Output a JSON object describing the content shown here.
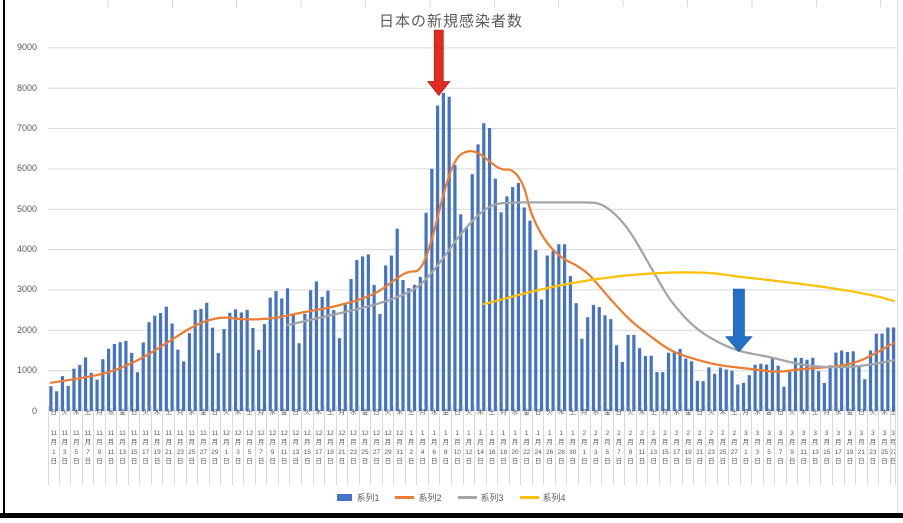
{
  "title": "日本の新規感染者数",
  "colors": {
    "bar": "#4472C4",
    "series2": "#ED7D31",
    "series3": "#A5A5A5",
    "series4": "#FFC000",
    "red_arrow": "#E02B20",
    "red_arrow_edge": "#B02418",
    "blue_arrow": "#2470C8",
    "blue_arrow_edge": "#1F5FA8",
    "gridline": "#D9D9D9",
    "axis_text": "#595959"
  },
  "legend": {
    "items": [
      {
        "label": "系列1",
        "type": "bar",
        "color": "#4472C4"
      },
      {
        "label": "系列2",
        "type": "line",
        "color": "#ED7D31"
      },
      {
        "label": "系列3",
        "type": "line",
        "color": "#A5A5A5"
      },
      {
        "label": "系列4",
        "type": "line",
        "color": "#FFC000"
      }
    ]
  },
  "chart_data": {
    "type": "bar",
    "title": "日本の新規感染者数",
    "xlabel": "",
    "ylabel": "",
    "ylim": [
      0,
      9000
    ],
    "grid": true,
    "legend_position": "bottom",
    "y_axis": {
      "min": 0,
      "max": 9000,
      "step": 1000,
      "tick_labels": [
        "0",
        "1000",
        "2000",
        "3000",
        "4000",
        "5000",
        "6000",
        "7000",
        "8000",
        "9000"
      ]
    },
    "x_axis": {
      "description": "daily categories from 11月1日(日) to 3月27日(土), labeled every 2 days",
      "weekday_chars": [
        "日",
        "月",
        "火",
        "水",
        "木",
        "金",
        "土"
      ],
      "start_weekday_index": 0,
      "months": [
        {
          "label": "11",
          "days": 30
        },
        {
          "label": "12",
          "days": 31
        },
        {
          "label": "1",
          "days": 31
        },
        {
          "label": "2",
          "days": 28
        },
        {
          "label": "3",
          "days": 27
        }
      ],
      "label_every_days": 2,
      "month_suffix": "月",
      "day_suffix": "日"
    },
    "series": [
      {
        "name": "系列1",
        "type": "bar",
        "color": "#4472C4",
        "values": [
          614,
          488,
          865,
          620,
          1049,
          1141,
          1331,
          947,
          780,
          1284,
          1543,
          1660,
          1704,
          1738,
          1441,
          962,
          1699,
          2201,
          2363,
          2427,
          2586,
          2168,
          1520,
          1229,
          1930,
          2504,
          2531,
          2684,
          2066,
          1438,
          2030,
          2434,
          2518,
          2442,
          2508,
          2058,
          1516,
          2152,
          2810,
          2972,
          2790,
          3041,
          2388,
          1680,
          2410,
          2993,
          3211,
          2829,
          2982,
          2501,
          1806,
          2686,
          3271,
          3742,
          3832,
          3881,
          3127,
          2403,
          3608,
          3852,
          4520,
          3246,
          3044,
          3127,
          3325,
          4915,
          6004,
          7571,
          7882,
          7790,
          6096,
          4875,
          4538,
          5870,
          6609,
          7133,
          7014,
          5759,
          4925,
          5320,
          5549,
          5653,
          5045,
          4717,
          3989,
          2764,
          3853,
          3971,
          4133,
          4132,
          3344,
          2673,
          1792,
          2324,
          2631,
          2576,
          2372,
          2277,
          1630,
          1216,
          1887,
          1885,
          1558,
          1362,
          1371,
          965,
          965,
          1443,
          1448,
          1539,
          1301,
          1234,
          750,
          739,
          1083,
          922,
          1076,
          1029,
          999,
          657,
          697,
          888,
          1148,
          1171,
          1151,
          1330,
          1122,
          599,
          973,
          1320,
          1316,
          1271,
          1320,
          989,
          695,
          1133,
          1448,
          1499,
          1463,
          1480,
          1121,
          787,
          1500,
          1918,
          1917,
          2070,
          2072
        ]
      },
      {
        "name": "系列2",
        "type": "line",
        "color": "#ED7D31",
        "points": [
          [
            0,
            700
          ],
          [
            4,
            790
          ],
          [
            8,
            880
          ],
          [
            12,
            1050
          ],
          [
            16,
            1320
          ],
          [
            20,
            1680
          ],
          [
            24,
            2050
          ],
          [
            27,
            2250
          ],
          [
            30,
            2330
          ],
          [
            33,
            2270
          ],
          [
            36,
            2270
          ],
          [
            39,
            2300
          ],
          [
            42,
            2400
          ],
          [
            45,
            2480
          ],
          [
            48,
            2550
          ],
          [
            51,
            2660
          ],
          [
            54,
            2780
          ],
          [
            57,
            2970
          ],
          [
            60,
            3300
          ],
          [
            62,
            3470
          ],
          [
            64,
            3450
          ],
          [
            66,
            4200
          ],
          [
            68,
            5400
          ],
          [
            70,
            6250
          ],
          [
            72,
            6460
          ],
          [
            74,
            6420
          ],
          [
            76,
            6180
          ],
          [
            78,
            5970
          ],
          [
            80,
            6000
          ],
          [
            82,
            5600
          ],
          [
            83,
            4950
          ],
          [
            85,
            4350
          ],
          [
            87,
            3980
          ],
          [
            89,
            3750
          ],
          [
            91,
            3620
          ],
          [
            93,
            3420
          ],
          [
            95,
            3100
          ],
          [
            97,
            2760
          ],
          [
            99,
            2450
          ],
          [
            101,
            2170
          ],
          [
            103,
            1950
          ],
          [
            105,
            1730
          ],
          [
            107,
            1530
          ],
          [
            109,
            1400
          ],
          [
            111,
            1310
          ],
          [
            113,
            1230
          ],
          [
            115,
            1160
          ],
          [
            117,
            1110
          ],
          [
            119,
            1075
          ],
          [
            121,
            1050
          ],
          [
            123,
            1010
          ],
          [
            125,
            975
          ],
          [
            127,
            980
          ],
          [
            129,
            1020
          ],
          [
            131,
            1050
          ],
          [
            133,
            1070
          ],
          [
            135,
            1090
          ],
          [
            137,
            1125
          ],
          [
            139,
            1185
          ],
          [
            141,
            1290
          ],
          [
            143,
            1440
          ],
          [
            145,
            1600
          ],
          [
            146,
            1680
          ]
        ]
      },
      {
        "name": "系列3",
        "type": "line",
        "color": "#A5A5A5",
        "points": [
          [
            41,
            2130
          ],
          [
            45,
            2260
          ],
          [
            49,
            2390
          ],
          [
            53,
            2520
          ],
          [
            57,
            2670
          ],
          [
            61,
            2870
          ],
          [
            64,
            3100
          ],
          [
            67,
            3600
          ],
          [
            69,
            4000
          ],
          [
            71,
            4380
          ],
          [
            73,
            4720
          ],
          [
            75,
            4980
          ],
          [
            77,
            5140
          ],
          [
            80,
            5170
          ],
          [
            85,
            5170
          ],
          [
            90,
            5170
          ],
          [
            93,
            5170
          ],
          [
            95,
            5150
          ],
          [
            97,
            4980
          ],
          [
            99,
            4700
          ],
          [
            101,
            4300
          ],
          [
            103,
            3800
          ],
          [
            105,
            3300
          ],
          [
            107,
            2800
          ],
          [
            109,
            2450
          ],
          [
            111,
            2150
          ],
          [
            113,
            1920
          ],
          [
            115,
            1750
          ],
          [
            117,
            1610
          ],
          [
            119,
            1500
          ],
          [
            121,
            1430
          ],
          [
            123,
            1380
          ],
          [
            125,
            1320
          ],
          [
            127,
            1250
          ],
          [
            129,
            1180
          ],
          [
            131,
            1130
          ],
          [
            133,
            1100
          ],
          [
            135,
            1085
          ],
          [
            137,
            1085
          ],
          [
            139,
            1100
          ],
          [
            141,
            1130
          ],
          [
            143,
            1170
          ],
          [
            145,
            1230
          ],
          [
            146,
            1260
          ]
        ]
      },
      {
        "name": "系列4",
        "type": "line",
        "color": "#FFC000",
        "points": [
          [
            75,
            2650
          ],
          [
            79,
            2800
          ],
          [
            83,
            2950
          ],
          [
            87,
            3080
          ],
          [
            91,
            3190
          ],
          [
            95,
            3280
          ],
          [
            99,
            3350
          ],
          [
            103,
            3400
          ],
          [
            107,
            3430
          ],
          [
            111,
            3440
          ],
          [
            115,
            3420
          ],
          [
            119,
            3330
          ],
          [
            123,
            3270
          ],
          [
            127,
            3200
          ],
          [
            131,
            3130
          ],
          [
            135,
            3050
          ],
          [
            139,
            2960
          ],
          [
            143,
            2850
          ],
          [
            146,
            2730
          ]
        ]
      }
    ],
    "annotations": {
      "red_arrow": {
        "day": 67.2,
        "value_from": 9440,
        "value_to": 7820,
        "points_at": "highest bar (系列1 peak)"
      },
      "blue_arrow": {
        "day": 119.2,
        "value_from": 3020,
        "value_to": 1470,
        "points_at": "系列3 line in early March"
      }
    }
  }
}
